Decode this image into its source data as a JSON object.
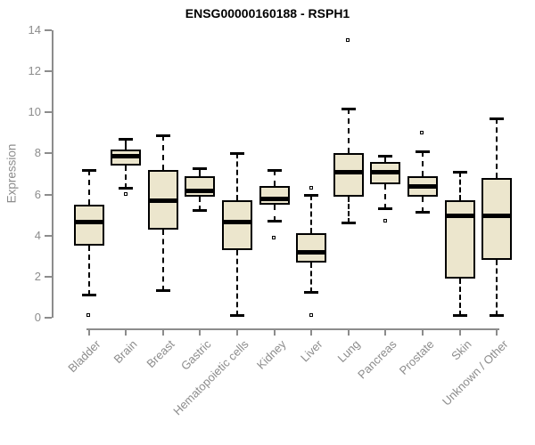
{
  "chart_data": {
    "type": "boxplot",
    "title": "ENSG00000160188 - RSPH1",
    "ylabel": "Expression",
    "xlabel": "",
    "ylim": [
      0,
      14
    ],
    "yticks": [
      0,
      2,
      4,
      6,
      8,
      10,
      12,
      14
    ],
    "grid": false,
    "legend": "none",
    "categories": [
      "Bladder",
      "Brain",
      "Breast",
      "Gastric",
      "Hematopoietic cells",
      "Kidney",
      "Liver",
      "Lung",
      "Pancreas",
      "Prostate",
      "Skin",
      "Unknown / Other"
    ],
    "boxes": [
      {
        "category": "Bladder",
        "whislo": 1.1,
        "q1": 3.5,
        "med": 4.7,
        "q3": 5.5,
        "whishi": 7.2,
        "outliers": [
          0.1
        ]
      },
      {
        "category": "Brain",
        "whislo": 6.3,
        "q1": 7.4,
        "med": 7.9,
        "q3": 8.2,
        "whishi": 8.7,
        "outliers": [
          6.0
        ]
      },
      {
        "category": "Breast",
        "whislo": 1.3,
        "q1": 4.3,
        "med": 5.7,
        "q3": 7.2,
        "whishi": 8.9,
        "outliers": []
      },
      {
        "category": "Gastric",
        "whislo": 5.2,
        "q1": 5.9,
        "med": 6.2,
        "q3": 6.9,
        "whishi": 7.3,
        "outliers": []
      },
      {
        "category": "Hematopoietic cells",
        "whislo": 0.1,
        "q1": 3.3,
        "med": 4.7,
        "q3": 5.7,
        "whishi": 8.0,
        "outliers": []
      },
      {
        "category": "Kidney",
        "whislo": 4.7,
        "q1": 5.5,
        "med": 5.8,
        "q3": 6.4,
        "whishi": 7.2,
        "outliers": [
          3.9
        ]
      },
      {
        "category": "Liver",
        "whislo": 1.2,
        "q1": 2.7,
        "med": 3.2,
        "q3": 4.1,
        "whishi": 6.0,
        "outliers": [
          6.3,
          0.1
        ]
      },
      {
        "category": "Lung",
        "whislo": 4.6,
        "q1": 5.9,
        "med": 7.1,
        "q3": 8.0,
        "whishi": 10.2,
        "outliers": [
          13.5
        ]
      },
      {
        "category": "Pancreas",
        "whislo": 5.3,
        "q1": 6.5,
        "med": 7.1,
        "q3": 7.6,
        "whishi": 7.9,
        "outliers": [
          4.7
        ]
      },
      {
        "category": "Prostate",
        "whislo": 5.1,
        "q1": 5.9,
        "med": 6.4,
        "q3": 6.9,
        "whishi": 8.1,
        "outliers": [
          9.0
        ]
      },
      {
        "category": "Skin",
        "whislo": 0.1,
        "q1": 1.9,
        "med": 5.0,
        "q3": 5.7,
        "whishi": 7.1,
        "outliers": []
      },
      {
        "category": "Unknown / Other",
        "whislo": 0.1,
        "q1": 2.8,
        "med": 5.0,
        "q3": 6.8,
        "whishi": 9.7,
        "outliers": []
      }
    ],
    "colors": {
      "box_fill": "#ece6cd",
      "box_border": "#000000",
      "median": "#000000",
      "axis": "#8c8c8c",
      "tick_label": "#8c8c8c",
      "title": "#000000",
      "background": "#ffffff"
    }
  }
}
